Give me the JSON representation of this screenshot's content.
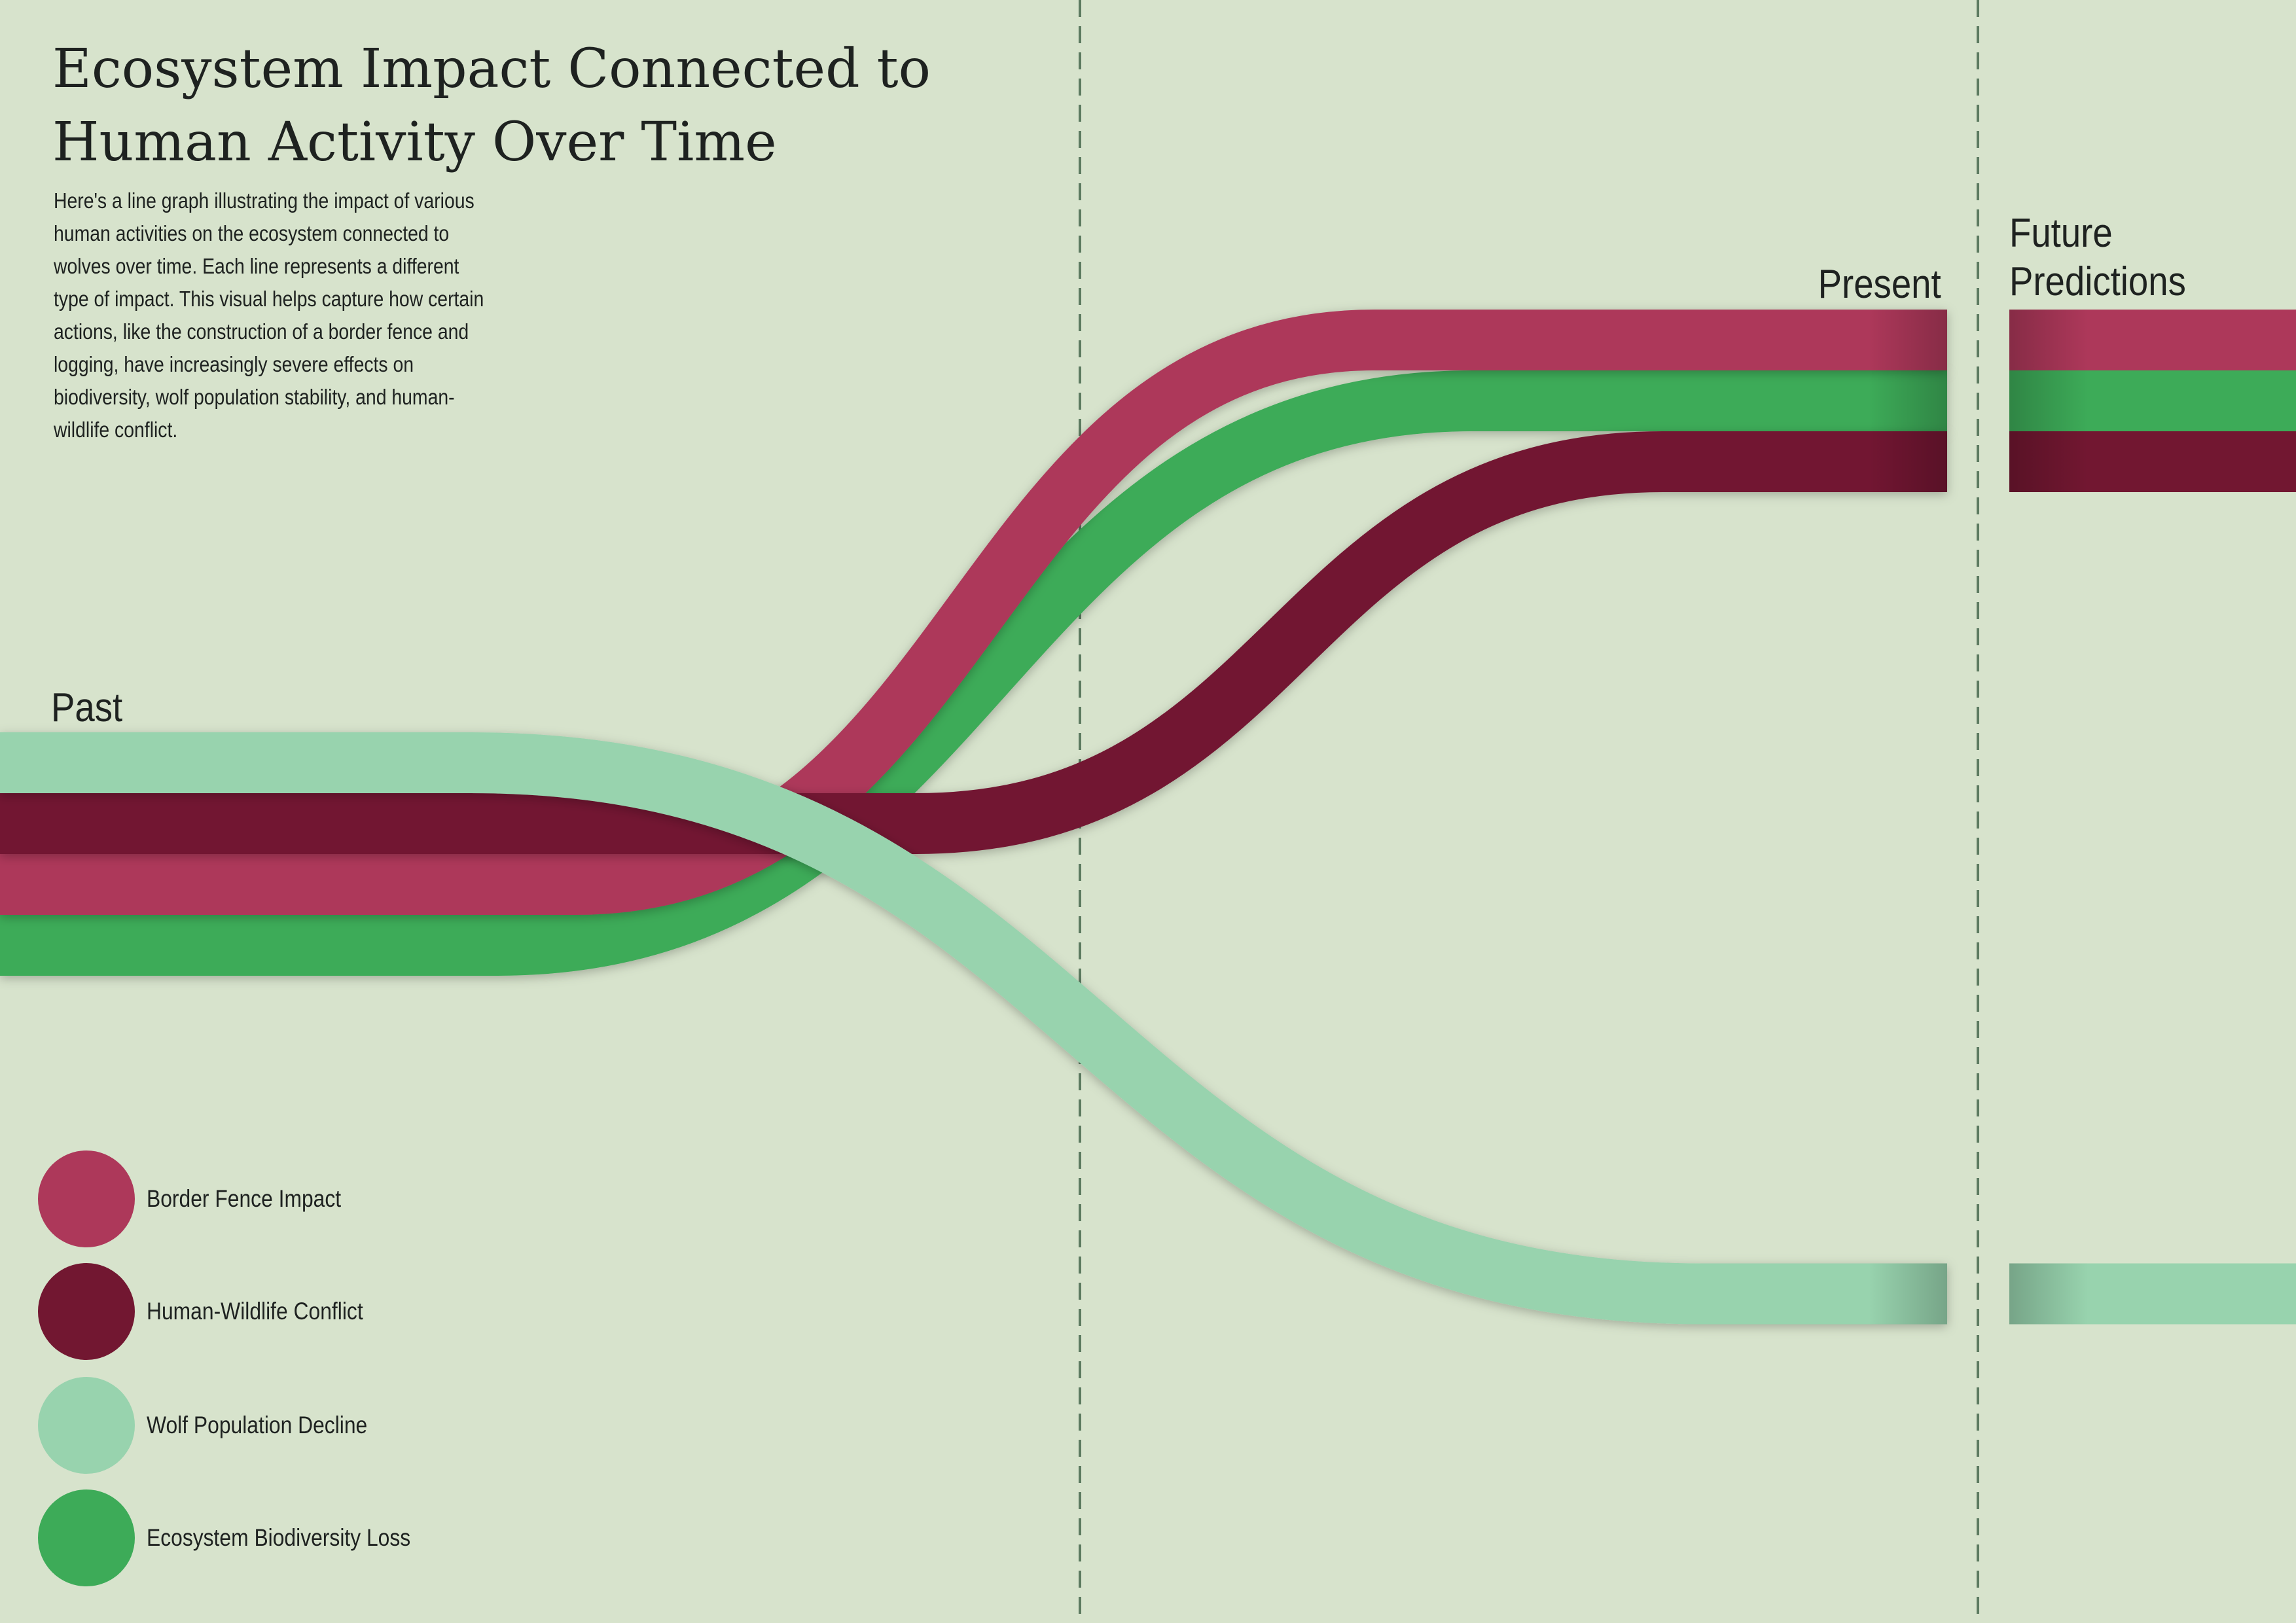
{
  "chart_data": {
    "type": "line",
    "title": "Ecosystem Impact Connected to Human Activity Over Time",
    "subtitle": "Here's a line graph illustrating the impact of various human activities on the ecosystem connected to wolves over time. Each line represents a different type of impact. This visual helps capture how certain actions, like the construction of a border fence and logging, have increasingly severe effects on biodiversity, wolf population stability, and human-wildlife conflict.",
    "periods": [
      "Past",
      "Present",
      "Future\nPredictions"
    ],
    "grid": false,
    "legend_position": "bottom-left",
    "series": [
      {
        "name": "Border Fence Impact",
        "color": "#ad385a",
        "values": [
          2,
          4,
          4
        ]
      },
      {
        "name": "Human-Wildlife Conflict",
        "color": "#721731",
        "values": [
          3,
          2,
          2
        ]
      },
      {
        "name": "Wolf Population Decline",
        "color": "#98d3ae",
        "values": [
          4,
          1,
          1
        ]
      },
      {
        "name": "Ecosystem Biodiversity Loss",
        "color": "#3dab58",
        "values": [
          1,
          3,
          3
        ]
      }
    ]
  }
}
